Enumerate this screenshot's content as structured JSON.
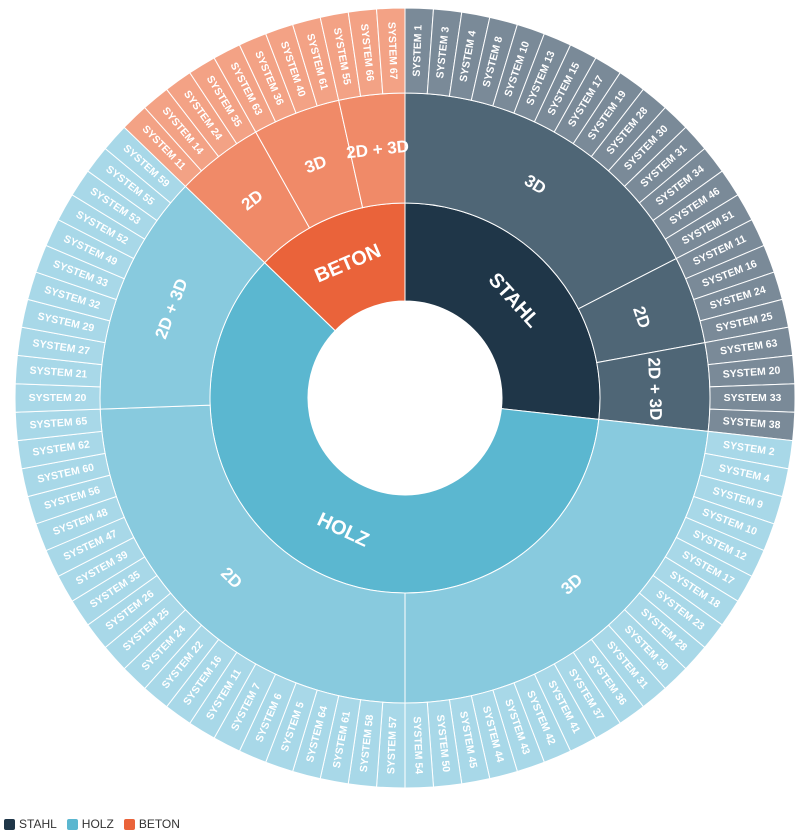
{
  "chart_data": {
    "type": "sunburst",
    "legend": {
      "placement": "bottom-left",
      "items": [
        {
          "name": "STAHL",
          "color": "#1f3648"
        },
        {
          "name": "HOLZ",
          "color": "#5bb7d0"
        },
        {
          "name": "BETON",
          "color": "#ea633a"
        }
      ]
    },
    "root": [
      {
        "name": "STAHL",
        "color": "#1f3648",
        "children": [
          {
            "name": "3D",
            "color": "#4f6676",
            "leafColor": "#7a8a98",
            "systems": [
              "SYSTEM 1",
              "SYSTEM 3",
              "SYSTEM 4",
              "SYSTEM 8",
              "SYSTEM 10",
              "SYSTEM 13",
              "SYSTEM 15",
              "SYSTEM 17",
              "SYSTEM 19",
              "SYSTEM 28",
              "SYSTEM 30",
              "SYSTEM 31",
              "SYSTEM 34",
              "SYSTEM 46",
              "SYSTEM 51"
            ]
          },
          {
            "name": "2D",
            "color": "#4f6676",
            "leafColor": "#7a8a98",
            "systems": [
              "SYSTEM 11",
              "SYSTEM 16",
              "SYSTEM 24",
              "SYSTEM 25"
            ]
          },
          {
            "name": "2D + 3D",
            "color": "#4f6676",
            "leafColor": "#7a8a98",
            "systems": [
              "SYSTEM 63",
              "SYSTEM 20",
              "SYSTEM 33",
              "SYSTEM 38"
            ]
          }
        ]
      },
      {
        "name": "HOLZ",
        "color": "#5bb7d0",
        "children": [
          {
            "name": "3D",
            "color": "#88cade",
            "leafColor": "#a8d8e8",
            "systems": [
              "SYSTEM 2",
              "SYSTEM 4",
              "SYSTEM 9",
              "SYSTEM 10",
              "SYSTEM 12",
              "SYSTEM 17",
              "SYSTEM 18",
              "SYSTEM 23",
              "SYSTEM 28",
              "SYSTEM 30",
              "SYSTEM 31",
              "SYSTEM 36",
              "SYSTEM 37",
              "SYSTEM 41",
              "SYSTEM 42",
              "SYSTEM 43",
              "SYSTEM 44",
              "SYSTEM 45",
              "SYSTEM 50",
              "SYSTEM 54"
            ]
          },
          {
            "name": "2D",
            "color": "#88cade",
            "leafColor": "#a8d8e8",
            "systems": [
              "SYSTEM 57",
              "SYSTEM 58",
              "SYSTEM 61",
              "SYSTEM 64",
              "SYSTEM 5",
              "SYSTEM 6",
              "SYSTEM 7",
              "SYSTEM 11",
              "SYSTEM 16",
              "SYSTEM 22",
              "SYSTEM 24",
              "SYSTEM 25",
              "SYSTEM 26",
              "SYSTEM 35",
              "SYSTEM 39",
              "SYSTEM 47",
              "SYSTEM 48",
              "SYSTEM 56",
              "SYSTEM 60",
              "SYSTEM 62",
              "SYSTEM 65"
            ]
          },
          {
            "name": "2D + 3D",
            "color": "#88cade",
            "leafColor": "#a8d8e8",
            "systems": [
              "SYSTEM 20",
              "SYSTEM 21",
              "SYSTEM 27",
              "SYSTEM 29",
              "SYSTEM 32",
              "SYSTEM 33",
              "SYSTEM 49",
              "SYSTEM 52",
              "SYSTEM 53",
              "SYSTEM 55",
              "SYSTEM 59"
            ]
          }
        ]
      },
      {
        "name": "BETON",
        "color": "#ea633a",
        "children": [
          {
            "name": "2D",
            "color": "#f08a68",
            "leafColor": "#f3a285",
            "systems": [
              "SYSTEM 11",
              "SYSTEM 14",
              "SYSTEM 24",
              "SYSTEM 35"
            ]
          },
          {
            "name": "3D",
            "color": "#f08a68",
            "leafColor": "#f3a285",
            "systems": [
              "SYSTEM 63",
              "SYSTEM 36",
              "SYSTEM 40",
              "SYSTEM 61"
            ]
          },
          {
            "name": "2D + 3D",
            "color": "#f08a68",
            "leafColor": "#f3a285",
            "systems": [
              "SYSTEM 55",
              "SYSTEM 66",
              "SYSTEM 67"
            ]
          }
        ]
      }
    ]
  }
}
